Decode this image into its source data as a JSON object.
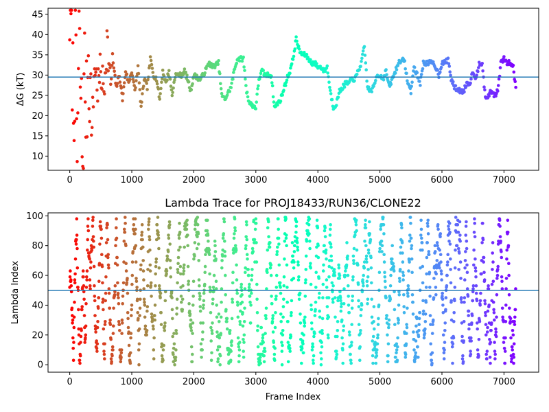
{
  "chart_data": [
    {
      "type": "scatter",
      "title": "",
      "xlabel": "",
      "ylabel": "ΔG (kT)",
      "xlim": [
        -350,
        7560
      ],
      "ylim": [
        6.5,
        46.5
      ],
      "xticks": [
        0,
        1000,
        2000,
        3000,
        4000,
        5000,
        6000,
        7000
      ],
      "yticks": [
        10,
        15,
        20,
        25,
        30,
        35,
        40,
        45
      ],
      "hline": 29.5,
      "hline_color": "#1f77b4",
      "colormap": "rainbow (red at frame 0 → violet at last frame)",
      "x_range": [
        0,
        7190
      ],
      "grid": false,
      "trace": [
        [
          0,
          46
        ],
        [
          30,
          40
        ],
        [
          60,
          22
        ],
        [
          90,
          35
        ],
        [
          120,
          10
        ],
        [
          150,
          38
        ],
        [
          180,
          25
        ],
        [
          210,
          8
        ],
        [
          240,
          31
        ],
        [
          270,
          20
        ],
        [
          300,
          36
        ],
        [
          330,
          26
        ],
        [
          360,
          16
        ],
        [
          400,
          33
        ],
        [
          450,
          27
        ],
        [
          500,
          31
        ],
        [
          550,
          26
        ],
        [
          600,
          39
        ],
        [
          650,
          28
        ],
        [
          700,
          33
        ],
        [
          750,
          27
        ],
        [
          800,
          30
        ],
        [
          850,
          24
        ],
        [
          900,
          31
        ],
        [
          950,
          28
        ],
        [
          1000,
          31
        ],
        [
          1050,
          26
        ],
        [
          1100,
          32
        ],
        [
          1150,
          22
        ],
        [
          1200,
          29
        ],
        [
          1250,
          27
        ],
        [
          1300,
          34
        ],
        [
          1350,
          30
        ],
        [
          1400,
          29
        ],
        [
          1450,
          24
        ],
        [
          1500,
          31
        ],
        [
          1550,
          28
        ],
        [
          1600,
          31
        ],
        [
          1650,
          25
        ],
        [
          1700,
          30
        ],
        [
          1800,
          30
        ],
        [
          1850,
          31
        ],
        [
          1900,
          29
        ],
        [
          1950,
          26
        ],
        [
          2000,
          30
        ],
        [
          2100,
          29
        ],
        [
          2150,
          30
        ],
        [
          2250,
          33
        ],
        [
          2300,
          32
        ],
        [
          2400,
          33
        ],
        [
          2450,
          25
        ],
        [
          2500,
          24
        ],
        [
          2600,
          27
        ],
        [
          2650,
          31
        ],
        [
          2700,
          34
        ],
        [
          2800,
          34
        ],
        [
          2850,
          26
        ],
        [
          2900,
          23
        ],
        [
          3000,
          22
        ],
        [
          3050,
          29
        ],
        [
          3100,
          31
        ],
        [
          3150,
          30
        ],
        [
          3250,
          30
        ],
        [
          3300,
          22
        ],
        [
          3350,
          23
        ],
        [
          3400,
          24
        ],
        [
          3500,
          29
        ],
        [
          3550,
          31
        ],
        [
          3600,
          34
        ],
        [
          3650,
          39
        ],
        [
          3700,
          36
        ],
        [
          3750,
          35
        ],
        [
          3800,
          35
        ],
        [
          3850,
          34
        ],
        [
          3900,
          33
        ],
        [
          3950,
          33
        ],
        [
          4000,
          32
        ],
        [
          4050,
          32
        ],
        [
          4100,
          31
        ],
        [
          4150,
          32
        ],
        [
          4200,
          26
        ],
        [
          4250,
          22
        ],
        [
          4300,
          23
        ],
        [
          4350,
          26
        ],
        [
          4400,
          27
        ],
        [
          4450,
          28
        ],
        [
          4500,
          28
        ],
        [
          4550,
          29
        ],
        [
          4600,
          29
        ],
        [
          4700,
          33
        ],
        [
          4750,
          37
        ],
        [
          4800,
          27
        ],
        [
          4850,
          26
        ],
        [
          4900,
          27
        ],
        [
          4950,
          30
        ],
        [
          5000,
          30
        ],
        [
          5050,
          29
        ],
        [
          5100,
          31
        ],
        [
          5150,
          27
        ],
        [
          5200,
          29
        ],
        [
          5300,
          33
        ],
        [
          5350,
          34
        ],
        [
          5400,
          33
        ],
        [
          5450,
          28
        ],
        [
          5500,
          26
        ],
        [
          5550,
          32
        ],
        [
          5600,
          30
        ],
        [
          5650,
          28
        ],
        [
          5700,
          33
        ],
        [
          5800,
          33
        ],
        [
          5850,
          33
        ],
        [
          5900,
          32
        ],
        [
          5950,
          30
        ],
        [
          6000,
          33
        ],
        [
          6050,
          33
        ],
        [
          6100,
          34
        ],
        [
          6150,
          29
        ],
        [
          6200,
          27
        ],
        [
          6300,
          26
        ],
        [
          6350,
          26
        ],
        [
          6400,
          28
        ],
        [
          6450,
          28
        ],
        [
          6500,
          31
        ],
        [
          6550,
          29
        ],
        [
          6600,
          33
        ],
        [
          6650,
          33
        ],
        [
          6700,
          24
        ],
        [
          6750,
          25
        ],
        [
          6800,
          26
        ],
        [
          6850,
          25
        ],
        [
          6900,
          26
        ],
        [
          6950,
          33
        ],
        [
          7000,
          34
        ],
        [
          7050,
          33
        ],
        [
          7100,
          33
        ],
        [
          7150,
          32
        ],
        [
          7190,
          27
        ]
      ]
    },
    {
      "type": "scatter",
      "title": "Lambda Trace for PROJ18433/RUN36/CLONE22",
      "xlabel": "Frame Index",
      "ylabel": "Lambda Index",
      "xlim": [
        -350,
        7560
      ],
      "ylim": [
        -5,
        102
      ],
      "xticks": [
        0,
        1000,
        2000,
        3000,
        4000,
        5000,
        6000,
        7000
      ],
      "yticks": [
        0,
        20,
        40,
        60,
        80,
        100
      ],
      "hline": 50,
      "hline_color": "#1f77b4",
      "colormap": "rainbow (red at frame 0 → violet at last frame)",
      "x_range": [
        0,
        7190
      ],
      "y_range": [
        0,
        99
      ],
      "grid": false
    }
  ]
}
